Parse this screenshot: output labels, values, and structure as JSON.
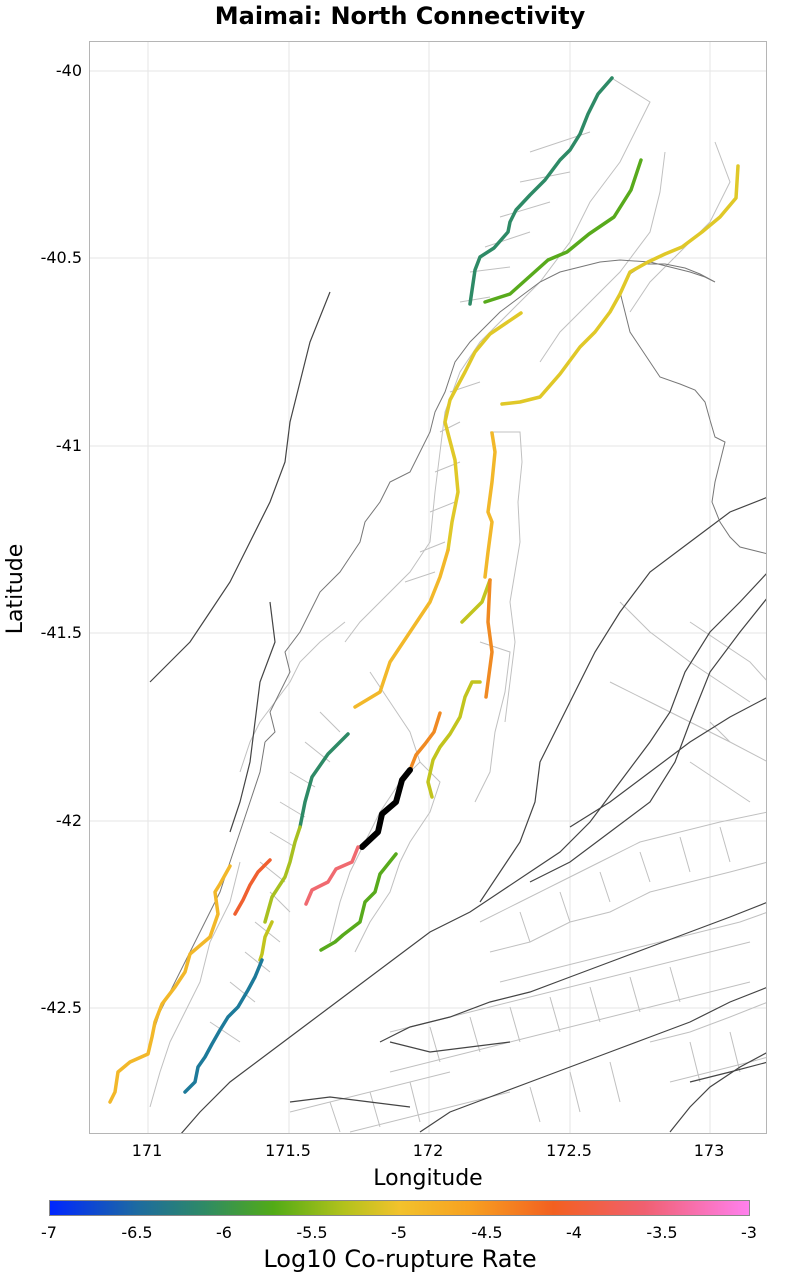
{
  "title": "Maimai: North Connectivity",
  "x_axis": {
    "label": "Longitude",
    "ticks": [
      "171",
      "171.5",
      "172",
      "172.5",
      "173"
    ]
  },
  "y_axis": {
    "label": "Latitude",
    "ticks": [
      "-40",
      "-40.5",
      "-41",
      "-41.5",
      "-42",
      "-42.5"
    ]
  },
  "colorbar": {
    "label": "Log10 Co-rupture Rate",
    "ticks": [
      "-7",
      "-6.5",
      "-6",
      "-5.5",
      "-5",
      "-4.5",
      "-4",
      "-3.5",
      "-3"
    ],
    "colors": [
      "#0026ff",
      "#2e8a66",
      "#52ab16",
      "#d8c828",
      "#f7a120",
      "#f26020",
      "#ff80ee"
    ]
  },
  "highlight_color": "#000000",
  "segment_colors": {
    "teal": "#2e8a66",
    "blue_teal": "#1d7a9a",
    "green": "#58aa1c",
    "yellow_green": "#c2c41e",
    "yellow": "#e0c828",
    "amber": "#f2b82a",
    "orange": "#f08a22",
    "red_orange": "#f06030",
    "salmon": "#f06a70"
  }
}
